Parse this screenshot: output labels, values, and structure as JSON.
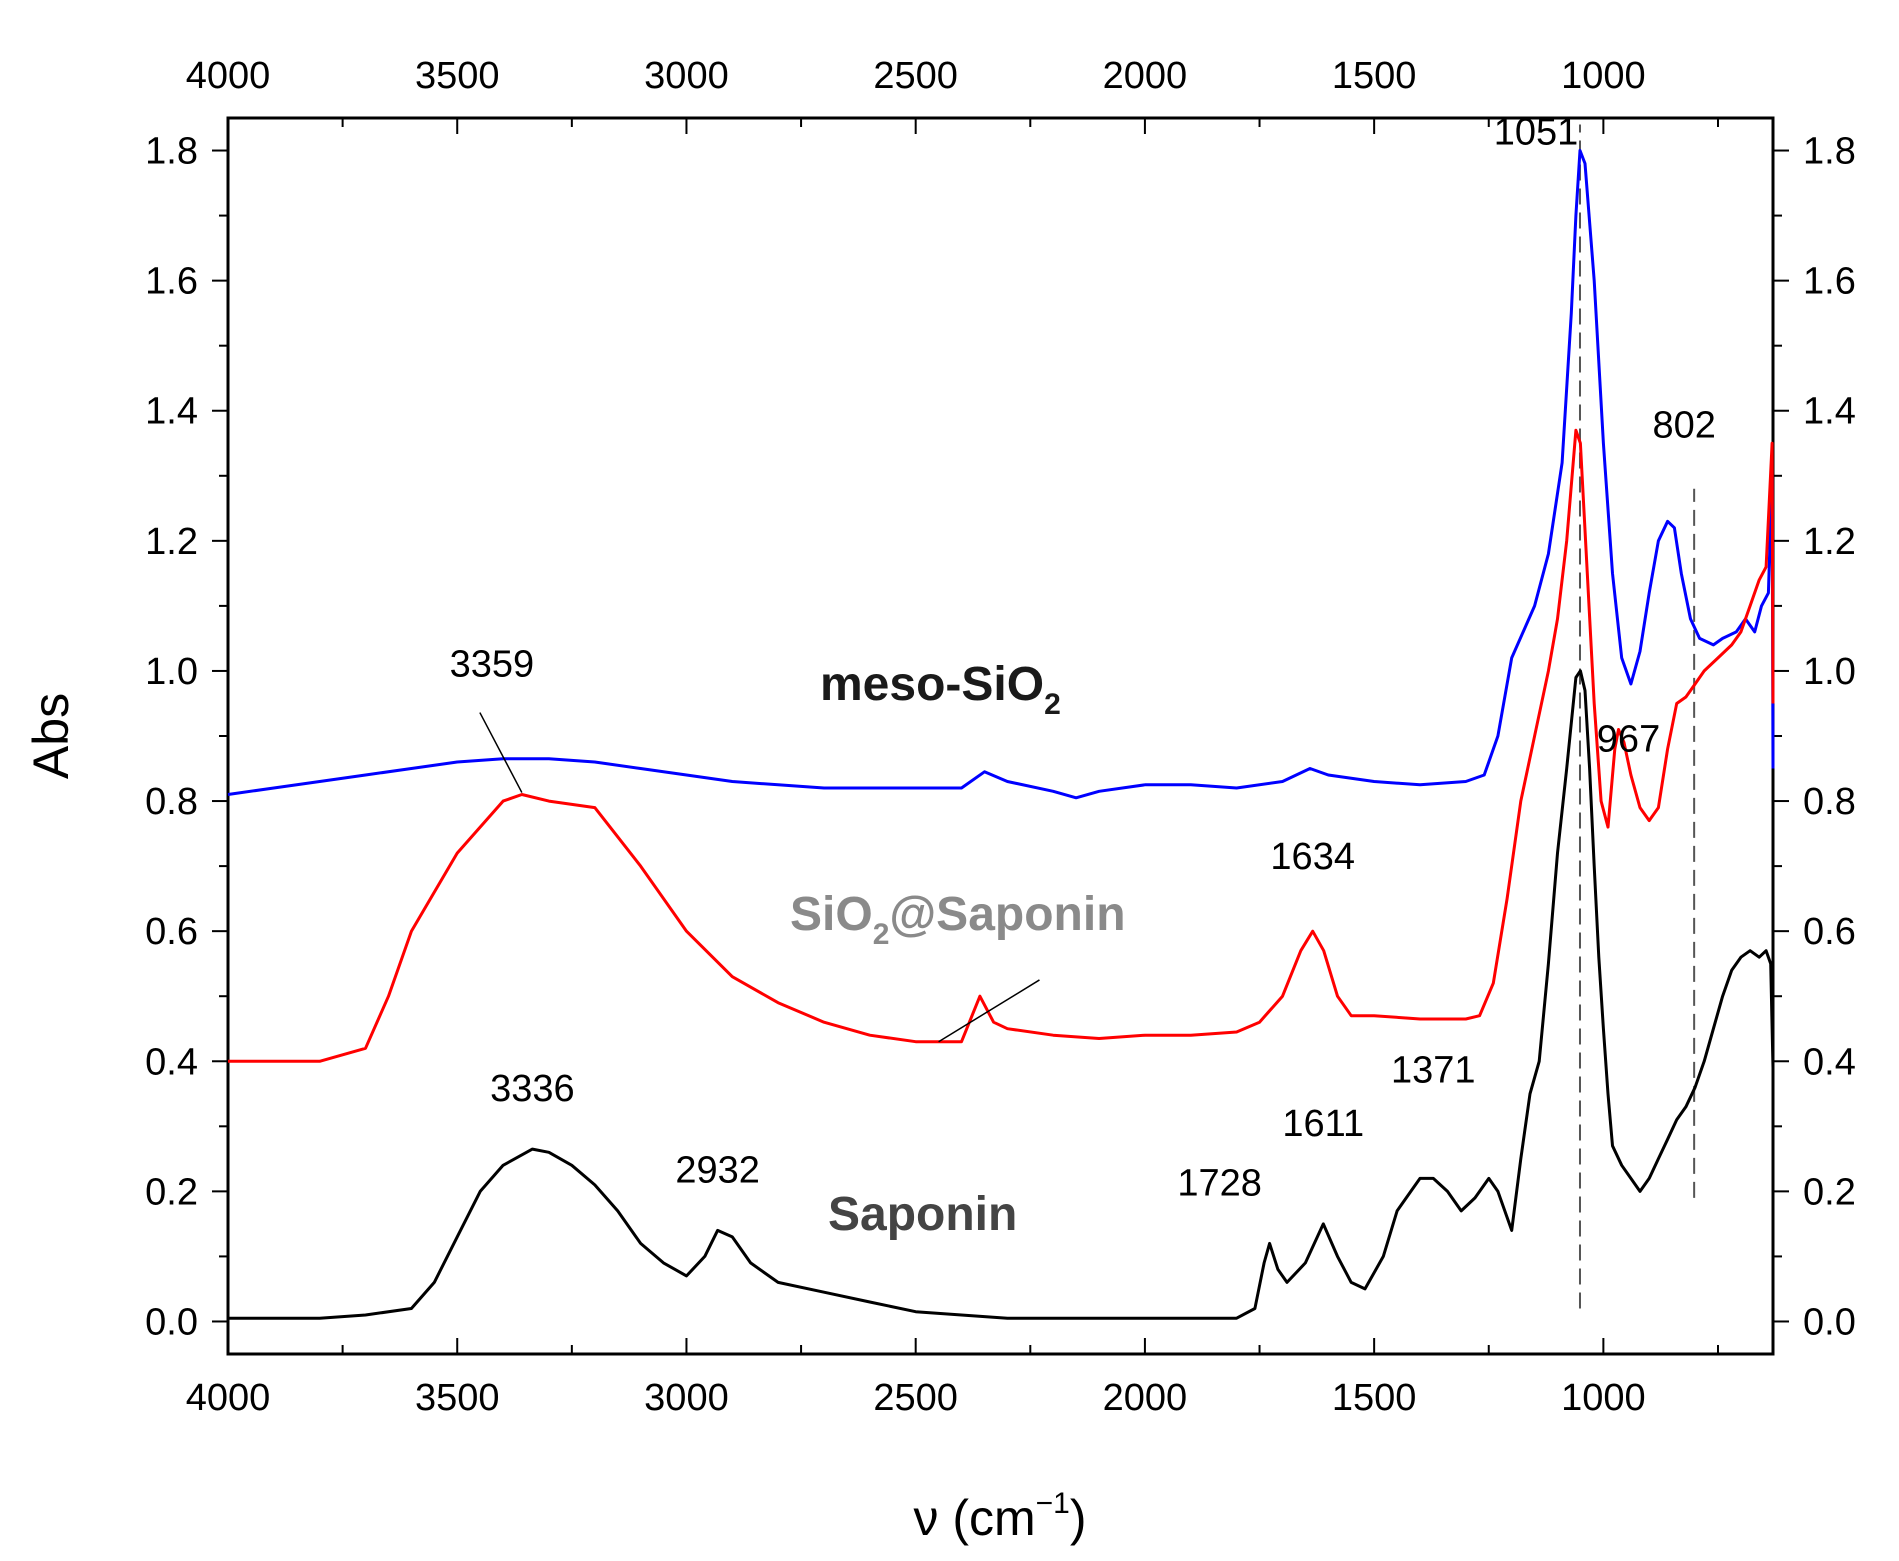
{
  "chart_data": {
    "type": "line",
    "xlabel": "ν (cm",
    "xlabel_sup": "−1",
    "xlabel_close": ")",
    "ylabel": "Abs",
    "xlim": [
      4000,
      630
    ],
    "ylim": [
      -0.05,
      1.85
    ],
    "x_ticks": [
      4000,
      3500,
      3000,
      2500,
      2000,
      1500,
      1000
    ],
    "x_tick_labels": [
      "4000",
      "3500",
      "3000",
      "2500",
      "2000",
      "1500",
      "1000"
    ],
    "y_ticks": [
      0.0,
      0.2,
      0.4,
      0.6,
      0.8,
      1.0,
      1.2,
      1.4,
      1.6,
      1.8
    ],
    "y_tick_labels": [
      "0.0",
      "0.2",
      "0.4",
      "0.6",
      "0.8",
      "1.0",
      "1.2",
      "1.4",
      "1.6",
      "1.8"
    ],
    "series": [
      {
        "name": "meso-SiO2",
        "label_main": "meso-SiO",
        "label_sub": "2",
        "label_suffix": "",
        "color": "#0000ff",
        "label_color": "#1a1a1a",
        "points": [
          [
            4000,
            0.81
          ],
          [
            3900,
            0.82
          ],
          [
            3800,
            0.83
          ],
          [
            3700,
            0.84
          ],
          [
            3600,
            0.85
          ],
          [
            3500,
            0.86
          ],
          [
            3400,
            0.865
          ],
          [
            3300,
            0.865
          ],
          [
            3200,
            0.86
          ],
          [
            3100,
            0.85
          ],
          [
            3000,
            0.84
          ],
          [
            2900,
            0.83
          ],
          [
            2800,
            0.825
          ],
          [
            2700,
            0.82
          ],
          [
            2600,
            0.82
          ],
          [
            2500,
            0.82
          ],
          [
            2400,
            0.82
          ],
          [
            2350,
            0.845
          ],
          [
            2300,
            0.83
          ],
          [
            2200,
            0.815
          ],
          [
            2150,
            0.805
          ],
          [
            2100,
            0.815
          ],
          [
            2000,
            0.825
          ],
          [
            1900,
            0.825
          ],
          [
            1800,
            0.82
          ],
          [
            1700,
            0.83
          ],
          [
            1640,
            0.85
          ],
          [
            1600,
            0.84
          ],
          [
            1500,
            0.83
          ],
          [
            1400,
            0.825
          ],
          [
            1300,
            0.83
          ],
          [
            1260,
            0.84
          ],
          [
            1230,
            0.9
          ],
          [
            1200,
            1.02
          ],
          [
            1150,
            1.1
          ],
          [
            1120,
            1.18
          ],
          [
            1090,
            1.32
          ],
          [
            1070,
            1.55
          ],
          [
            1060,
            1.7
          ],
          [
            1051,
            1.8
          ],
          [
            1040,
            1.78
          ],
          [
            1020,
            1.6
          ],
          [
            1000,
            1.35
          ],
          [
            980,
            1.15
          ],
          [
            960,
            1.02
          ],
          [
            940,
            0.98
          ],
          [
            920,
            1.03
          ],
          [
            900,
            1.12
          ],
          [
            880,
            1.2
          ],
          [
            860,
            1.23
          ],
          [
            845,
            1.22
          ],
          [
            830,
            1.15
          ],
          [
            810,
            1.08
          ],
          [
            790,
            1.05
          ],
          [
            760,
            1.04
          ],
          [
            740,
            1.05
          ],
          [
            710,
            1.06
          ],
          [
            690,
            1.08
          ],
          [
            670,
            1.06
          ],
          [
            655,
            1.1
          ],
          [
            640,
            1.12
          ],
          [
            632,
            1.3
          ],
          [
            630,
            0.85
          ]
        ]
      },
      {
        "name": "SiO2@Saponin",
        "label_main": "SiO",
        "label_sub": "2",
        "label_suffix": "@Saponin",
        "color": "#ff0000",
        "label_color": "#8a8a8a",
        "points": [
          [
            4000,
            0.4
          ],
          [
            3800,
            0.4
          ],
          [
            3700,
            0.42
          ],
          [
            3650,
            0.5
          ],
          [
            3600,
            0.6
          ],
          [
            3500,
            0.72
          ],
          [
            3400,
            0.8
          ],
          [
            3359,
            0.81
          ],
          [
            3300,
            0.8
          ],
          [
            3200,
            0.79
          ],
          [
            3100,
            0.7
          ],
          [
            3000,
            0.6
          ],
          [
            2900,
            0.53
          ],
          [
            2800,
            0.49
          ],
          [
            2700,
            0.46
          ],
          [
            2600,
            0.44
          ],
          [
            2500,
            0.43
          ],
          [
            2400,
            0.43
          ],
          [
            2360,
            0.5
          ],
          [
            2330,
            0.46
          ],
          [
            2300,
            0.45
          ],
          [
            2200,
            0.44
          ],
          [
            2100,
            0.435
          ],
          [
            2000,
            0.44
          ],
          [
            1900,
            0.44
          ],
          [
            1800,
            0.445
          ],
          [
            1750,
            0.46
          ],
          [
            1700,
            0.5
          ],
          [
            1660,
            0.57
          ],
          [
            1634,
            0.6
          ],
          [
            1610,
            0.57
          ],
          [
            1580,
            0.5
          ],
          [
            1550,
            0.47
          ],
          [
            1500,
            0.47
          ],
          [
            1400,
            0.465
          ],
          [
            1300,
            0.465
          ],
          [
            1270,
            0.47
          ],
          [
            1240,
            0.52
          ],
          [
            1210,
            0.65
          ],
          [
            1180,
            0.8
          ],
          [
            1150,
            0.9
          ],
          [
            1120,
            1.0
          ],
          [
            1100,
            1.08
          ],
          [
            1080,
            1.2
          ],
          [
            1060,
            1.37
          ],
          [
            1050,
            1.35
          ],
          [
            1035,
            1.15
          ],
          [
            1020,
            0.95
          ],
          [
            1005,
            0.8
          ],
          [
            990,
            0.76
          ],
          [
            975,
            0.88
          ],
          [
            967,
            0.91
          ],
          [
            955,
            0.89
          ],
          [
            940,
            0.84
          ],
          [
            920,
            0.79
          ],
          [
            900,
            0.77
          ],
          [
            880,
            0.79
          ],
          [
            860,
            0.88
          ],
          [
            840,
            0.95
          ],
          [
            820,
            0.96
          ],
          [
            800,
            0.98
          ],
          [
            780,
            1.0
          ],
          [
            750,
            1.02
          ],
          [
            720,
            1.04
          ],
          [
            700,
            1.06
          ],
          [
            680,
            1.1
          ],
          [
            660,
            1.14
          ],
          [
            645,
            1.16
          ],
          [
            632,
            1.35
          ],
          [
            630,
            0.95
          ]
        ]
      },
      {
        "name": "Saponin",
        "label_main": "Saponin",
        "label_sub": "",
        "label_suffix": "",
        "color": "#000000",
        "label_color": "#444444",
        "points": [
          [
            4000,
            0.005
          ],
          [
            3800,
            0.005
          ],
          [
            3700,
            0.01
          ],
          [
            3600,
            0.02
          ],
          [
            3550,
            0.06
          ],
          [
            3500,
            0.13
          ],
          [
            3450,
            0.2
          ],
          [
            3400,
            0.24
          ],
          [
            3336,
            0.265
          ],
          [
            3300,
            0.26
          ],
          [
            3250,
            0.24
          ],
          [
            3200,
            0.21
          ],
          [
            3150,
            0.17
          ],
          [
            3100,
            0.12
          ],
          [
            3050,
            0.09
          ],
          [
            3000,
            0.07
          ],
          [
            2960,
            0.1
          ],
          [
            2932,
            0.14
          ],
          [
            2900,
            0.13
          ],
          [
            2860,
            0.09
          ],
          [
            2800,
            0.06
          ],
          [
            2700,
            0.045
          ],
          [
            2600,
            0.03
          ],
          [
            2500,
            0.015
          ],
          [
            2400,
            0.01
          ],
          [
            2300,
            0.005
          ],
          [
            2200,
            0.005
          ],
          [
            2100,
            0.005
          ],
          [
            2000,
            0.005
          ],
          [
            1900,
            0.005
          ],
          [
            1800,
            0.005
          ],
          [
            1760,
            0.02
          ],
          [
            1740,
            0.09
          ],
          [
            1728,
            0.12
          ],
          [
            1710,
            0.08
          ],
          [
            1690,
            0.06
          ],
          [
            1650,
            0.09
          ],
          [
            1611,
            0.15
          ],
          [
            1580,
            0.1
          ],
          [
            1550,
            0.06
          ],
          [
            1520,
            0.05
          ],
          [
            1480,
            0.1
          ],
          [
            1450,
            0.17
          ],
          [
            1420,
            0.2
          ],
          [
            1400,
            0.22
          ],
          [
            1371,
            0.22
          ],
          [
            1340,
            0.2
          ],
          [
            1310,
            0.17
          ],
          [
            1280,
            0.19
          ],
          [
            1250,
            0.22
          ],
          [
            1230,
            0.2
          ],
          [
            1200,
            0.14
          ],
          [
            1180,
            0.25
          ],
          [
            1160,
            0.35
          ],
          [
            1140,
            0.4
          ],
          [
            1120,
            0.55
          ],
          [
            1100,
            0.72
          ],
          [
            1080,
            0.85
          ],
          [
            1070,
            0.92
          ],
          [
            1060,
            0.99
          ],
          [
            1050,
            1.0
          ],
          [
            1040,
            0.97
          ],
          [
            1030,
            0.85
          ],
          [
            1020,
            0.7
          ],
          [
            1010,
            0.56
          ],
          [
            1000,
            0.45
          ],
          [
            990,
            0.35
          ],
          [
            980,
            0.27
          ],
          [
            960,
            0.24
          ],
          [
            940,
            0.22
          ],
          [
            920,
            0.2
          ],
          [
            900,
            0.22
          ],
          [
            880,
            0.25
          ],
          [
            860,
            0.28
          ],
          [
            840,
            0.31
          ],
          [
            820,
            0.33
          ],
          [
            800,
            0.36
          ],
          [
            780,
            0.4
          ],
          [
            760,
            0.45
          ],
          [
            740,
            0.5
          ],
          [
            720,
            0.54
          ],
          [
            700,
            0.56
          ],
          [
            680,
            0.57
          ],
          [
            660,
            0.56
          ],
          [
            645,
            0.57
          ],
          [
            635,
            0.55
          ],
          [
            630,
            0.39
          ]
        ]
      }
    ],
    "annotations": [
      {
        "text": "3359",
        "x": 3359,
        "y": 0.81
      },
      {
        "text": "3336",
        "x": 3336,
        "y": 0.265
      },
      {
        "text": "2932",
        "x": 2932,
        "y": 0.14
      },
      {
        "text": "1728",
        "x": 1728,
        "y": 0.12
      },
      {
        "text": "1611",
        "x": 1611,
        "y": 0.15
      },
      {
        "text": "1371",
        "x": 1371,
        "y": 0.22
      },
      {
        "text": "1634",
        "x": 1634,
        "y": 0.6
      },
      {
        "text": "1051",
        "x": 1051,
        "y": 1.8
      },
      {
        "text": "967",
        "x": 967,
        "y": 0.91
      },
      {
        "text": "802",
        "x": 802,
        "y": 1.23
      }
    ],
    "reference_lines": [
      {
        "x": 1051,
        "y_from": 0.02,
        "y_to": 1.84
      },
      {
        "x": 802,
        "y_from": 0.19,
        "y_to": 1.28
      }
    ]
  }
}
